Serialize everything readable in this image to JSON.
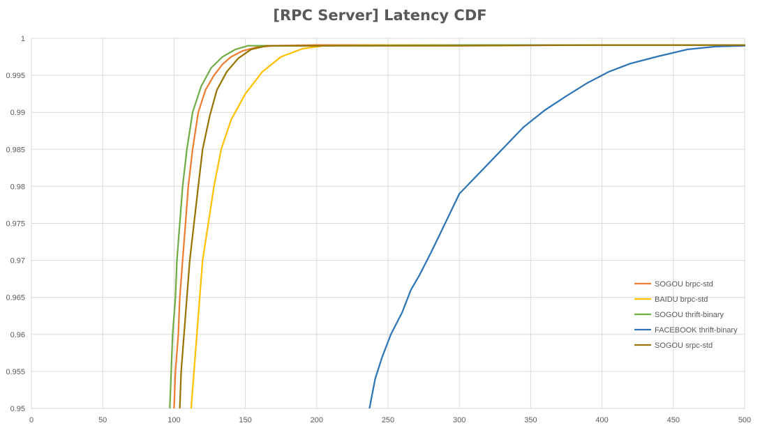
{
  "chart_data": {
    "type": "line",
    "title": "[RPC Server] Latency CDF",
    "xlabel": "",
    "ylabel": "",
    "xlim": [
      0,
      500
    ],
    "ylim": [
      0.95,
      1.0
    ],
    "x_ticks": [
      0,
      50,
      100,
      150,
      200,
      250,
      300,
      350,
      400,
      450,
      500
    ],
    "y_ticks": [
      0.95,
      0.955,
      0.96,
      0.965,
      0.97,
      0.975,
      0.98,
      0.985,
      0.99,
      0.995,
      1
    ],
    "grid": true,
    "legend_position": "right",
    "series": [
      {
        "name": "SOGOU brpc-std",
        "color": "#ED7D31",
        "points": [
          [
            100,
            0.95
          ],
          [
            101,
            0.955
          ],
          [
            103,
            0.96
          ],
          [
            104,
            0.965
          ],
          [
            106,
            0.97
          ],
          [
            108,
            0.975
          ],
          [
            110,
            0.98
          ],
          [
            113,
            0.985
          ],
          [
            117,
            0.99
          ],
          [
            122,
            0.993
          ],
          [
            128,
            0.995
          ],
          [
            134,
            0.9965
          ],
          [
            140,
            0.9975
          ],
          [
            148,
            0.9983
          ],
          [
            158,
            0.9988
          ],
          [
            170,
            0.999
          ],
          [
            200,
            0.9991
          ],
          [
            300,
            0.9991
          ],
          [
            400,
            0.9991
          ],
          [
            500,
            0.9991
          ]
        ]
      },
      {
        "name": "BAIDU brpc-std",
        "color": "#FFC000",
        "points": [
          [
            112,
            0.95
          ],
          [
            114,
            0.955
          ],
          [
            116,
            0.96
          ],
          [
            118,
            0.965
          ],
          [
            120,
            0.97
          ],
          [
            124,
            0.975
          ],
          [
            128,
            0.98
          ],
          [
            133,
            0.985
          ],
          [
            140,
            0.989
          ],
          [
            150,
            0.9925
          ],
          [
            162,
            0.9955
          ],
          [
            175,
            0.9975
          ],
          [
            190,
            0.9986
          ],
          [
            205,
            0.999
          ],
          [
            250,
            0.9991
          ],
          [
            300,
            0.9991
          ],
          [
            400,
            0.9991
          ],
          [
            500,
            0.9991
          ]
        ]
      },
      {
        "name": "SOGOU thrift-binary",
        "color": "#70AD47",
        "points": [
          [
            97,
            0.95
          ],
          [
            98,
            0.955
          ],
          [
            99,
            0.96
          ],
          [
            101,
            0.965
          ],
          [
            102,
            0.97
          ],
          [
            104,
            0.975
          ],
          [
            106,
            0.98
          ],
          [
            109,
            0.985
          ],
          [
            113,
            0.99
          ],
          [
            119,
            0.9935
          ],
          [
            126,
            0.996
          ],
          [
            134,
            0.9975
          ],
          [
            143,
            0.9985
          ],
          [
            152,
            0.999
          ],
          [
            200,
            0.999
          ],
          [
            300,
            0.9991
          ],
          [
            400,
            0.9991
          ],
          [
            500,
            0.9991
          ]
        ]
      },
      {
        "name": "FACEBOOK thrift-binary",
        "color": "#2E75B6",
        "points": [
          [
            237,
            0.95
          ],
          [
            241,
            0.954
          ],
          [
            246,
            0.957
          ],
          [
            252,
            0.96
          ],
          [
            260,
            0.963
          ],
          [
            266,
            0.966
          ],
          [
            272,
            0.968
          ],
          [
            280,
            0.971
          ],
          [
            290,
            0.975
          ],
          [
            300,
            0.979
          ],
          [
            315,
            0.982
          ],
          [
            330,
            0.985
          ],
          [
            345,
            0.988
          ],
          [
            360,
            0.9903
          ],
          [
            375,
            0.9922
          ],
          [
            390,
            0.994
          ],
          [
            405,
            0.9955
          ],
          [
            420,
            0.9966
          ],
          [
            440,
            0.9976
          ],
          [
            460,
            0.9985
          ],
          [
            480,
            0.9989
          ],
          [
            500,
            0.999
          ]
        ]
      },
      {
        "name": "SOGOU srpc-std",
        "color": "#997300",
        "points": [
          [
            104,
            0.95
          ],
          [
            105,
            0.955
          ],
          [
            107,
            0.96
          ],
          [
            109,
            0.965
          ],
          [
            111,
            0.97
          ],
          [
            114,
            0.975
          ],
          [
            117,
            0.98
          ],
          [
            120,
            0.985
          ],
          [
            125,
            0.9895
          ],
          [
            130,
            0.993
          ],
          [
            137,
            0.9955
          ],
          [
            145,
            0.9973
          ],
          [
            154,
            0.9985
          ],
          [
            165,
            0.999
          ],
          [
            200,
            0.999
          ],
          [
            300,
            0.999
          ],
          [
            400,
            0.9991
          ],
          [
            500,
            0.9991
          ]
        ]
      }
    ]
  }
}
